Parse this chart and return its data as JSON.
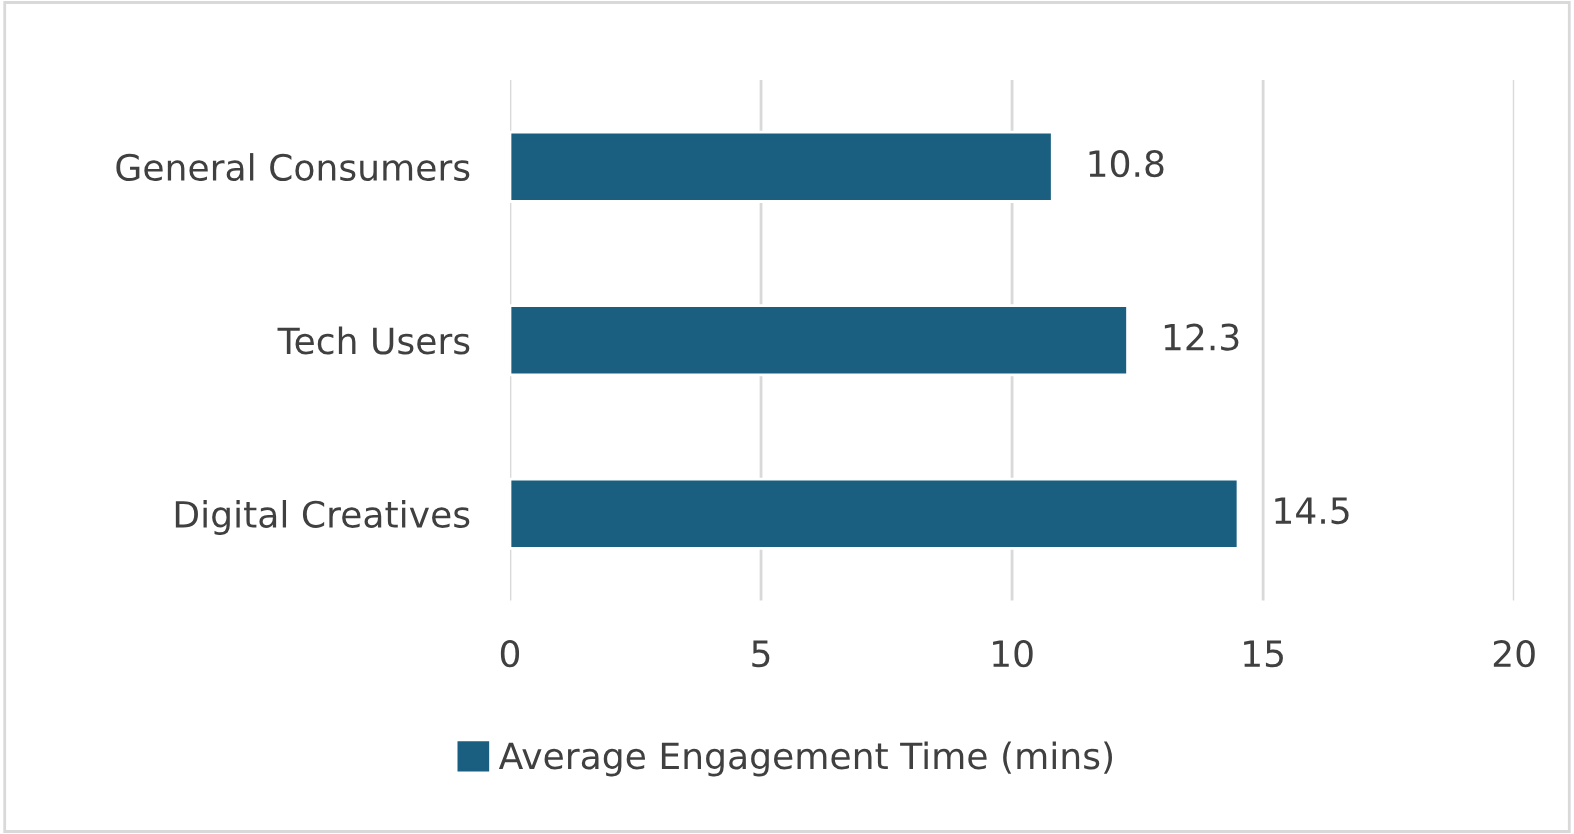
{
  "chart_data": {
    "type": "bar",
    "orientation": "horizontal",
    "categories": [
      "General Consumers",
      "Tech Users",
      "Digital Creatives"
    ],
    "series": [
      {
        "name": "Average Engagement Time (mins)",
        "color": "#1a5e80",
        "values": [
          10.8,
          12.3,
          14.5
        ]
      }
    ],
    "xlim": [
      0,
      20
    ],
    "xticks": [
      0,
      5,
      10,
      15,
      20
    ],
    "grid": "x",
    "legend": "bottom",
    "data_labels": true
  }
}
